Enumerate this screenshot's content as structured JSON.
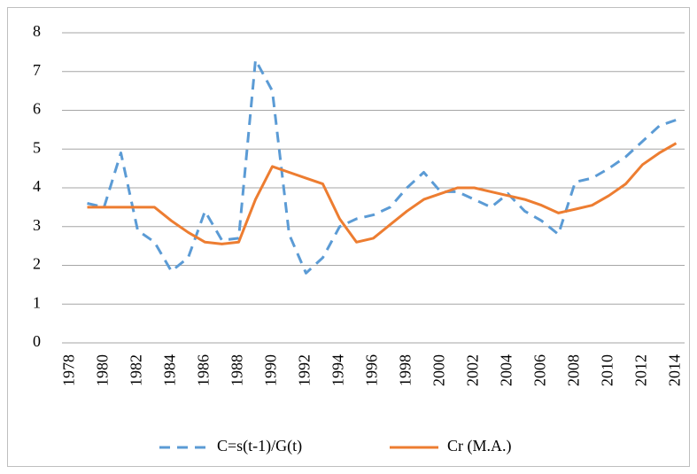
{
  "chart_data": {
    "type": "line",
    "categories": [
      "1978",
      null,
      "1980",
      null,
      "1982",
      null,
      "1984",
      null,
      "1986",
      null,
      "1988",
      null,
      "1990",
      null,
      "1992",
      null,
      "1994",
      null,
      "1996",
      null,
      "1998",
      null,
      "2000",
      null,
      "2002",
      null,
      "2004",
      null,
      "2006",
      null,
      "2008",
      null,
      "2010",
      null,
      "2012",
      null,
      "2014"
    ],
    "series": [
      {
        "name": "C=s(t-1)/G(t)",
        "color": "#5b9bd5",
        "dashed": true,
        "values": [
          null,
          3.6,
          3.5,
          4.9,
          2.9,
          2.6,
          1.85,
          2.2,
          3.4,
          2.65,
          2.7,
          7.3,
          6.5,
          2.8,
          1.8,
          2.2,
          3.0,
          3.2,
          3.3,
          3.5,
          4.0,
          4.4,
          3.9,
          3.9,
          3.7,
          3.5,
          3.85,
          3.4,
          3.15,
          2.8,
          4.15,
          4.25,
          4.5,
          4.8,
          5.2,
          5.6,
          5.75
        ]
      },
      {
        "name": "Cr (M.A.)",
        "color": "#ed7d31",
        "dashed": false,
        "values": [
          null,
          3.5,
          3.5,
          3.5,
          3.5,
          3.5,
          3.15,
          2.85,
          2.6,
          2.55,
          2.6,
          3.7,
          4.55,
          4.4,
          4.25,
          4.1,
          3.2,
          2.6,
          2.7,
          3.05,
          3.4,
          3.7,
          3.85,
          4.0,
          4.0,
          3.9,
          3.8,
          3.7,
          3.55,
          3.35,
          3.45,
          3.55,
          3.8,
          4.1,
          4.6,
          4.9,
          5.15
        ]
      }
    ],
    "ylim": [
      0,
      8
    ],
    "yticks": [
      0,
      1,
      2,
      3,
      4,
      5,
      6,
      7,
      8
    ],
    "grid": true,
    "legend": "bottom"
  }
}
